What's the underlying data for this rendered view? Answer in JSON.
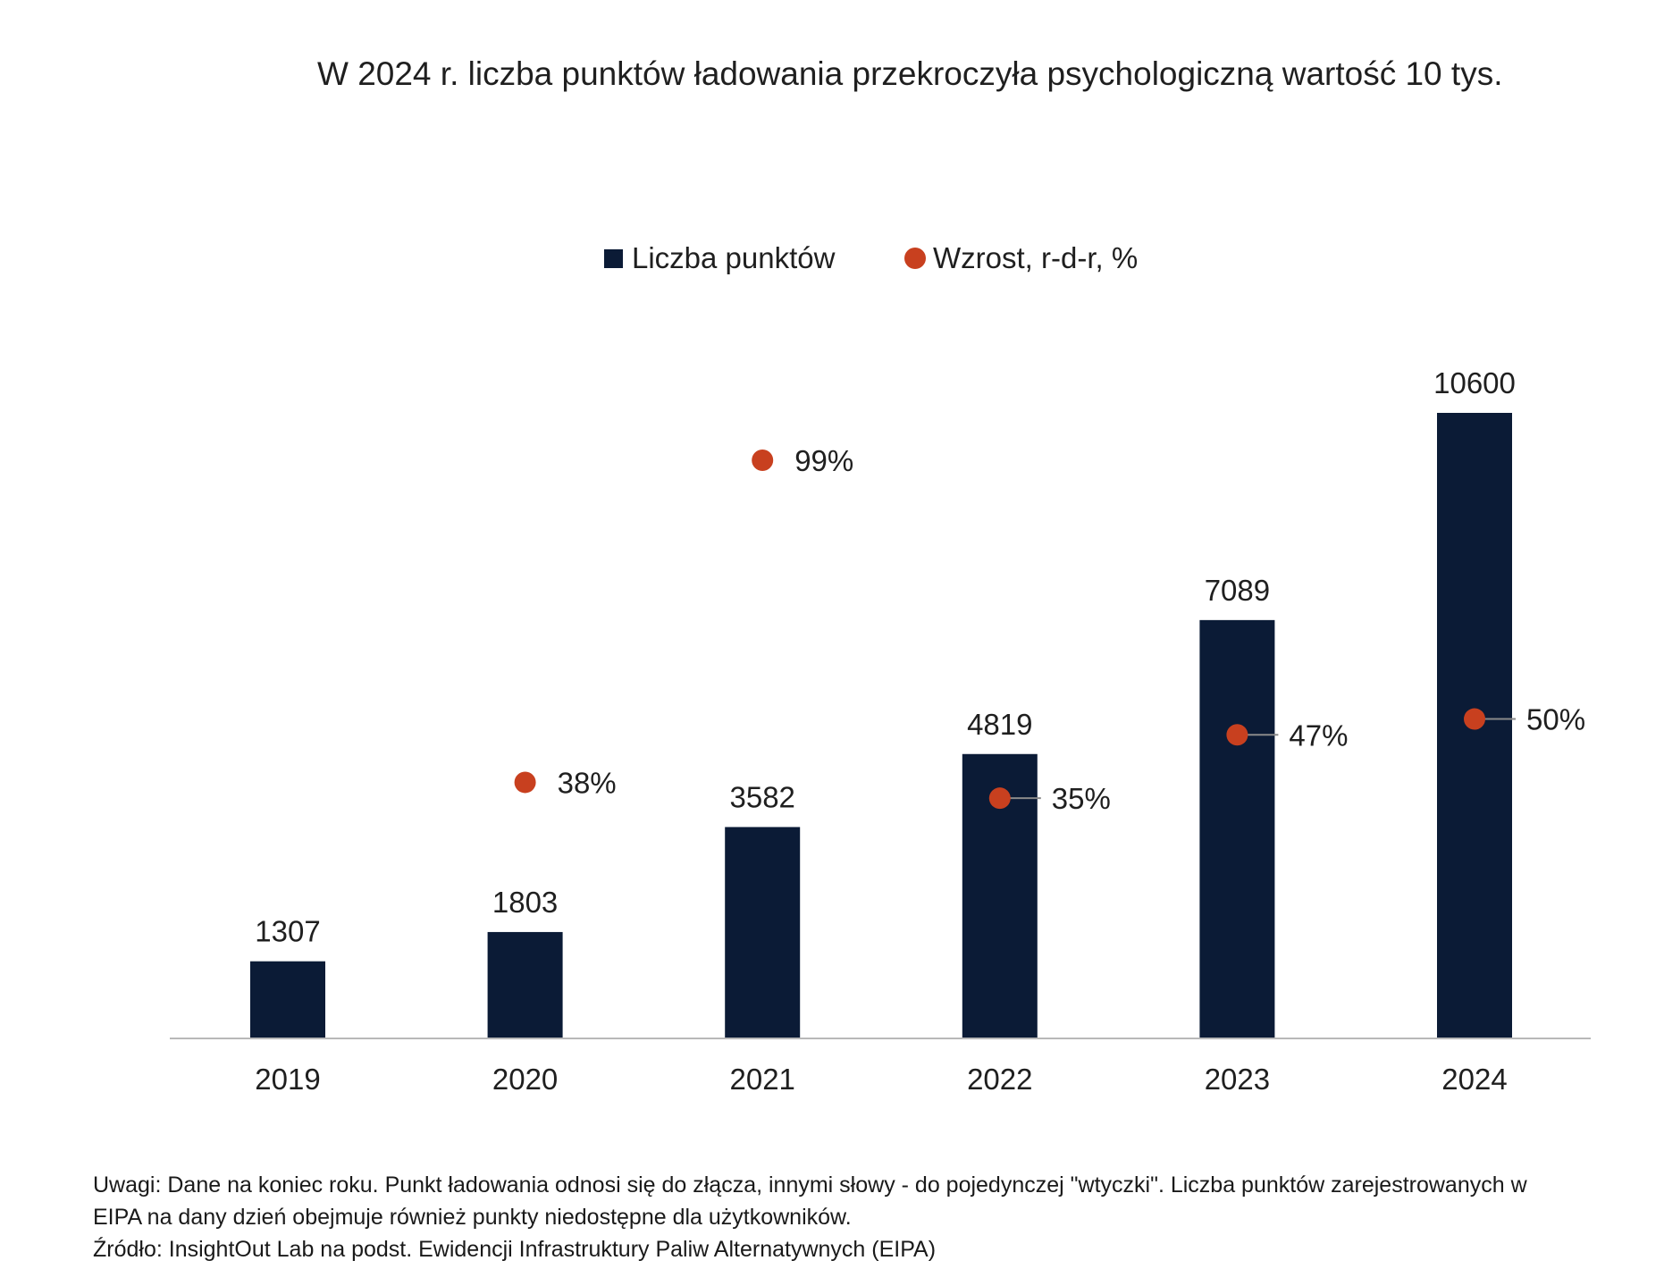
{
  "chart_data": {
    "type": "bar",
    "title": "W 2024 r. liczba punktów ładowania przekroczyła psychologiczną wartość 10 tys.",
    "categories": [
      "2019",
      "2020",
      "2021",
      "2022",
      "2023",
      "2024"
    ],
    "series": [
      {
        "name": "Liczba punktów",
        "type": "bar",
        "color": "#0b1b36",
        "values": [
          1307,
          1803,
          3582,
          4819,
          7089,
          10600
        ],
        "labels": [
          "1307",
          "1803",
          "3582",
          "4819",
          "7089",
          "10600"
        ]
      },
      {
        "name": "Wzrost, r-d-r, %",
        "type": "scatter",
        "color": "#c8401f",
        "values": [
          null,
          38,
          99,
          35,
          47,
          50
        ],
        "labels": [
          "",
          "38%",
          "99%",
          "35%",
          "47%",
          "50%"
        ]
      }
    ],
    "ylim": [
      0,
      10600
    ],
    "y2lim": [
      0,
      110
    ],
    "legend_position": "top-center",
    "grid": false
  },
  "notes": {
    "line1": "Uwagi: Dane na koniec roku. Punkt ładowania odnosi się do złącza, innymi słowy - do pojedynczej \"wtyczki\". Liczba punktów zarejestrowanych w",
    "line2": "EIPA na dany dzień obejmuje również punkty niedostępne dla użytkowników.",
    "source": "Źródło: InsightOut Lab na podst. Ewidencji Infrastruktury Paliw Alternatywnych (EIPA)"
  }
}
